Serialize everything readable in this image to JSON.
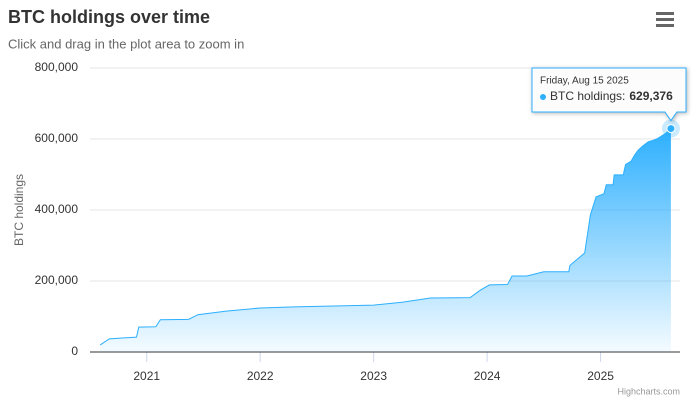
{
  "chart_data": {
    "type": "area",
    "title": "BTC holdings over time",
    "subtitle": "Click and drag in the plot area to zoom in",
    "y_axis_label": "BTC holdings",
    "credits": "Highcharts.com",
    "color": "#2caffe",
    "series_name": "BTC holdings",
    "x": [
      2020.59,
      2020.67,
      2020.91,
      2020.93,
      2021.08,
      2021.12,
      2021.37,
      2021.45,
      2021.7,
      2022.0,
      2022.3,
      2022.7,
      2023.0,
      2023.25,
      2023.5,
      2023.85,
      2023.94,
      2024.02,
      2024.18,
      2024.22,
      2024.35,
      2024.5,
      2024.72,
      2024.73,
      2024.86,
      2024.91,
      2024.96,
      2025.03,
      2025.05,
      2025.11,
      2025.12,
      2025.2,
      2025.22,
      2025.27,
      2025.3,
      2025.33,
      2025.37,
      2025.42,
      2025.47,
      2025.5,
      2025.53,
      2025.57,
      2025.62
    ],
    "values": [
      20000,
      37000,
      42000,
      70000,
      71000,
      91000,
      92000,
      105000,
      115000,
      124000,
      127000,
      130000,
      132000,
      140000,
      152000,
      153000,
      174000,
      189000,
      190000,
      214000,
      214000,
      226000,
      226000,
      244000,
      279000,
      386000,
      437000,
      446000,
      471000,
      471000,
      499000,
      499000,
      528000,
      538000,
      555000,
      568000,
      580000,
      592000,
      597000,
      601000,
      607000,
      615000,
      629376
    ],
    "xlim": [
      2020.5,
      2025.7
    ],
    "xticks": [
      2021,
      2022,
      2023,
      2024,
      2025
    ],
    "ylim": [
      0,
      800000
    ],
    "yticks": [
      0,
      {
        "value": 200000,
        "label": "200,000"
      },
      {
        "value": 400000,
        "label": "400,000"
      },
      {
        "value": 600000,
        "label": "600,000"
      },
      {
        "value": 800000,
        "label": "800,000"
      }
    ],
    "grid": true,
    "tooltip": {
      "header": "Friday, Aug 15 2025",
      "label": "BTC holdings:",
      "value_label": "629,376"
    }
  }
}
